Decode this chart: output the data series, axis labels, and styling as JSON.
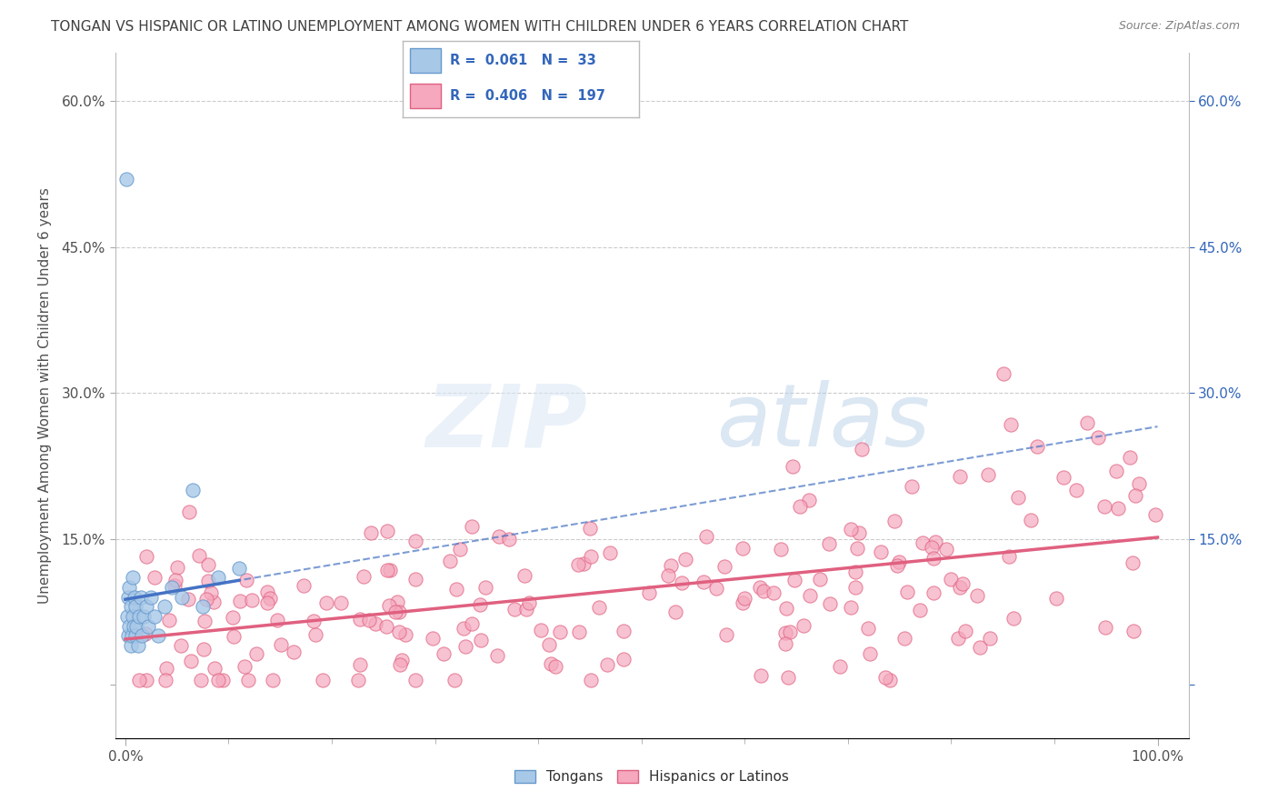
{
  "title": "TONGAN VS HISPANIC OR LATINO UNEMPLOYMENT AMONG WOMEN WITH CHILDREN UNDER 6 YEARS CORRELATION CHART",
  "source": "Source: ZipAtlas.com",
  "ylabel": "Unemployment Among Women with Children Under 6 years",
  "tongan_R": "0.061",
  "tongan_N": "33",
  "hispanic_R": "0.406",
  "hispanic_N": "197",
  "tongan_color": "#a8c8e8",
  "tongan_edge_color": "#6699cc",
  "hispanic_color": "#f5a8be",
  "hispanic_edge_color": "#e06080",
  "tongan_line_color": "#4472c4",
  "hispanic_line_color": "#e06080",
  "background_color": "#ffffff",
  "legend_label_tongan": "Tongans",
  "legend_label_hispanic": "Hispanics or Latinos",
  "grid_color": "#cccccc",
  "title_color": "#404040",
  "source_color": "#808080",
  "legend_text_color": "#3366bb",
  "watermark_color": "#d0ddf0",
  "ylim_low": -0.055,
  "ylim_high": 0.65,
  "xlim_low": -0.01,
  "xlim_high": 1.03
}
